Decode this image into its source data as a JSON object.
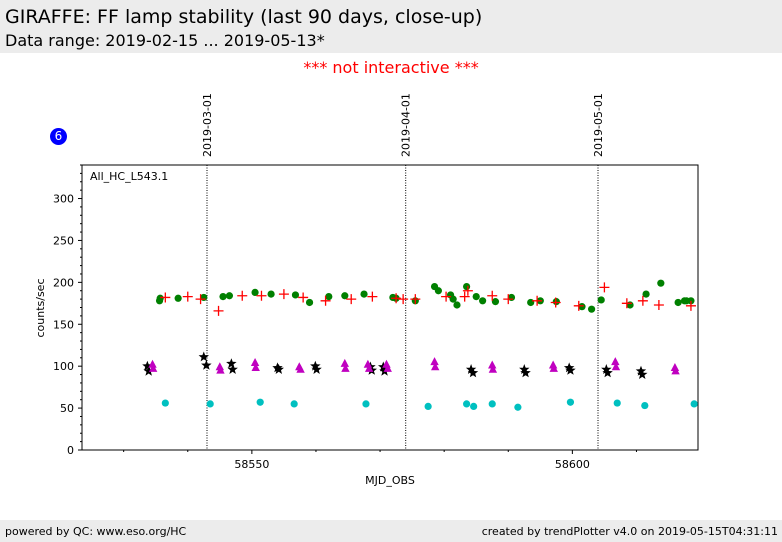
{
  "header": {
    "title": "GIRAFFE: FF lamp stability (last 90 days, close-up)",
    "subtitle": "Data range: 2019-02-15 ... 2019-05-13*"
  },
  "banner": {
    "text": "*** not interactive ***",
    "color": "#ff0000"
  },
  "badge": {
    "text": "6",
    "color": "#0000ff"
  },
  "footer": {
    "left": "powered by QC: www.eso.org/HC",
    "right": "created by trendPlotter v4.0 on 2019-05-15T04:31:11"
  },
  "chart_data": {
    "type": "scatter",
    "title": "",
    "panel_label": "All_HC_L543.1",
    "xlabel": "MJD_OBS",
    "ylabel": "counts/sec",
    "xlim": [
      58523.5,
      58619.6
    ],
    "ylim": [
      0,
      340
    ],
    "x_ticks": [
      58550,
      58600
    ],
    "y_ticks": [
      0,
      50,
      100,
      150,
      200,
      250,
      300
    ],
    "date_markers": [
      {
        "label": "2019-03-01",
        "x": 58543.0
      },
      {
        "label": "2019-04-01",
        "x": 58574.0
      },
      {
        "label": "2019-05-01",
        "x": 58604.0
      }
    ],
    "series": [
      {
        "name": "green",
        "marker": "circle",
        "color": "#008000",
        "x": [
          58535.6,
          58535.7,
          58538.5,
          58542.5,
          58545.5,
          58546.5,
          58550.5,
          58553,
          58556.8,
          58559,
          58562,
          58564.5,
          58567.5,
          58572.5,
          58572,
          58575.5,
          58578.5,
          58579.1,
          58581,
          58581.4,
          58582,
          58583.5,
          58585,
          58586,
          58588,
          58590.5,
          58593.5,
          58595,
          58597.5,
          58601.5,
          58603,
          58604.5,
          58609,
          58611.5,
          58613.8,
          58616.5,
          58617.5,
          58617.8,
          58618.5
        ],
        "y": [
          178,
          181,
          181,
          182,
          183,
          184,
          188,
          186,
          185,
          176,
          183,
          184,
          186,
          181,
          182,
          178,
          195,
          190,
          185,
          180,
          173,
          195,
          183,
          178,
          177,
          182,
          176,
          178,
          177,
          171,
          168,
          179,
          173,
          186,
          199,
          176,
          178,
          178,
          178
        ]
      },
      {
        "name": "red",
        "marker": "plus",
        "color": "#ff0000",
        "x": [
          58536.5,
          58540,
          58542,
          58544.8,
          58548.5,
          58551.5,
          58555,
          58558,
          58561.5,
          58565.5,
          58568.8,
          58572.5,
          58573.6,
          58575.5,
          58580.3,
          58583.2,
          58583.7,
          58587.5,
          58590,
          58594.5,
          58597.4,
          58601,
          58605,
          58608.5,
          58611,
          58613.5,
          58618.5
        ],
        "y": [
          182,
          183,
          180,
          166,
          184,
          184,
          186,
          182,
          178,
          180,
          183,
          181,
          180,
          180,
          183,
          183,
          190,
          184,
          180,
          178,
          176,
          172,
          194,
          175,
          178,
          173,
          172
        ]
      },
      {
        "name": "black",
        "marker": "star",
        "color": "#000000",
        "x": [
          58533.7,
          58533.9,
          58542.5,
          58542.9,
          58546.8,
          58547,
          58554,
          58554.2,
          58559.9,
          58560.1,
          58568.5,
          58568.7,
          58570.5,
          58570.7,
          58584.2,
          58584.5,
          58592.5,
          58592.7,
          58599.5,
          58599.7,
          58605.3,
          58605.5,
          58610.7,
          58610.9
        ],
        "y": [
          100,
          94,
          111,
          101,
          103,
          96,
          98,
          96,
          100,
          96,
          99,
          95,
          99,
          94,
          96,
          92,
          96,
          92,
          98,
          95,
          96,
          92,
          94,
          90
        ]
      },
      {
        "name": "magenta",
        "marker": "triangle",
        "color": "#c000c0",
        "x": [
          58534.5,
          58534.6,
          58545,
          58545.1,
          58550.5,
          58550.6,
          58557.4,
          58557.6,
          58564.5,
          58564.6,
          58568.1,
          58568.3,
          58571,
          58571.2,
          58578.5,
          58578.6,
          58587.5,
          58587.6,
          58597,
          58597.1,
          58606.7,
          58606.8,
          58616,
          58616.1
        ],
        "y": [
          102,
          97,
          99,
          95,
          104,
          98,
          99,
          96,
          103,
          97,
          102,
          97,
          102,
          97,
          105,
          99,
          101,
          96,
          101,
          97,
          105,
          99,
          98,
          94
        ]
      },
      {
        "name": "cyan",
        "marker": "circle",
        "color": "#00c0c0",
        "x": [
          58536.5,
          58543.5,
          58551.3,
          58556.6,
          58567.8,
          58577.5,
          58583.5,
          58584.6,
          58587.5,
          58591.5,
          58599.7,
          58607,
          58611.3,
          58619
        ],
        "y": [
          56,
          55,
          57,
          55,
          55,
          52,
          55,
          52,
          55,
          51,
          57,
          56,
          53,
          55
        ]
      }
    ]
  }
}
